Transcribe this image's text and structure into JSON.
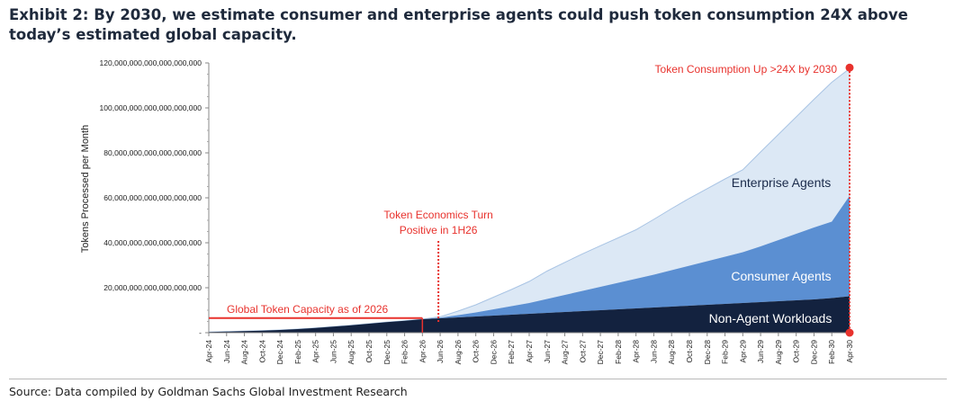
{
  "title": "Exhibit 2: By 2030, we estimate consumer and enterprise agents could push token consumption 24X above today’s estimated global capacity.",
  "source": "Source: Data compiled by Goldman Sachs Global Investment Research",
  "colors": {
    "non_agent": "#13223f",
    "consumer": "#5b8fd2",
    "enterprise": "#dce8f5",
    "enterprise_edge": "#a9c4e4",
    "annotation": "#e8322d",
    "axis": "#888888"
  },
  "chart_data": {
    "type": "area",
    "stacked": true,
    "ylabel": "Tokens Processed per Month",
    "ylim": [
      0,
      120000000000000000000
    ],
    "yticks": [
      {
        "value": 0,
        "label": "-"
      },
      {
        "value": 20000000000000000000,
        "label": "20,000,000,000,000,000,000"
      },
      {
        "value": 40000000000000000000,
        "label": "40,000,000,000,000,000,000"
      },
      {
        "value": 60000000000000000000,
        "label": "60,000,000,000,000,000,000"
      },
      {
        "value": 80000000000000000000,
        "label": "80,000,000,000,000,000,000"
      },
      {
        "value": 100000000000000000000,
        "label": "100,000,000,000,000,000,000"
      },
      {
        "value": 120000000000000000000,
        "label": "120,000,000,000,000,000,000"
      }
    ],
    "categories": [
      "Apr-24",
      "Jun-24",
      "Aug-24",
      "Oct-24",
      "Dec-24",
      "Feb-25",
      "Apr-25",
      "Jun-25",
      "Aug-25",
      "Oct-25",
      "Dec-25",
      "Feb-26",
      "Apr-26",
      "Jun-26",
      "Aug-26",
      "Oct-26",
      "Dec-26",
      "Feb-27",
      "Apr-27",
      "Jun-27",
      "Aug-27",
      "Oct-27",
      "Dec-27",
      "Feb-28",
      "Apr-28",
      "Jun-28",
      "Aug-28",
      "Oct-28",
      "Dec-28",
      "Feb-29",
      "Apr-29",
      "Jun-29",
      "Aug-29",
      "Oct-29",
      "Dec-29",
      "Feb-30",
      "Apr-30"
    ],
    "series": [
      {
        "name": "Non-Agent Workloads",
        "values": [
          0.3,
          0.5,
          0.7,
          0.9,
          1.2,
          1.6,
          2.1,
          2.7,
          3.3,
          4.0,
          4.7,
          5.3,
          6.0,
          6.4,
          6.8,
          7.2,
          7.6,
          8.0,
          8.4,
          8.8,
          9.2,
          9.6,
          10.0,
          10.4,
          10.8,
          11.2,
          11.6,
          12.0,
          12.4,
          12.8,
          13.2,
          13.6,
          14.0,
          14.4,
          14.8,
          15.4,
          16.2
        ]
      },
      {
        "name": "Consumer Agents",
        "values": [
          0,
          0,
          0,
          0,
          0,
          0,
          0,
          0,
          0,
          0,
          0,
          0,
          0,
          0.3,
          1.0,
          1.8,
          2.8,
          3.8,
          4.8,
          6.2,
          7.6,
          9.0,
          10.4,
          11.8,
          13.2,
          14.6,
          16.2,
          17.8,
          19.4,
          21.0,
          22.6,
          24.8,
          27.2,
          29.6,
          32.0,
          34.0,
          44.7
        ]
      },
      {
        "name": "Enterprise Agents",
        "values": [
          0,
          0,
          0,
          0,
          0,
          0,
          0,
          0,
          0,
          0,
          0,
          0,
          0,
          0.4,
          1.8,
          3.4,
          5.4,
          7.4,
          9.6,
          12.4,
          14.5,
          16.5,
          18.3,
          20.0,
          21.8,
          24.6,
          27.4,
          30.0,
          32.3,
          34.6,
          36.7,
          42.0,
          47.0,
          52.0,
          57.0,
          62.0,
          56.6
        ]
      }
    ],
    "value_unit_multiplier": 1000000000000000000,
    "series_labels": [
      "Enterprise Agents",
      "Consumer Agents",
      "Non-Agent Workloads"
    ],
    "annotations": {
      "capacity": {
        "label": "Global Token Capacity as of 2026",
        "value": 6.5,
        "end_index": 12
      },
      "economics": {
        "line1": "Token Economics Turn",
        "line2": "Positive in 1H26",
        "index": 13
      },
      "consumption": {
        "label": "Token Consumption Up >24X by 2030",
        "value": 117.5,
        "index": 36
      }
    }
  }
}
